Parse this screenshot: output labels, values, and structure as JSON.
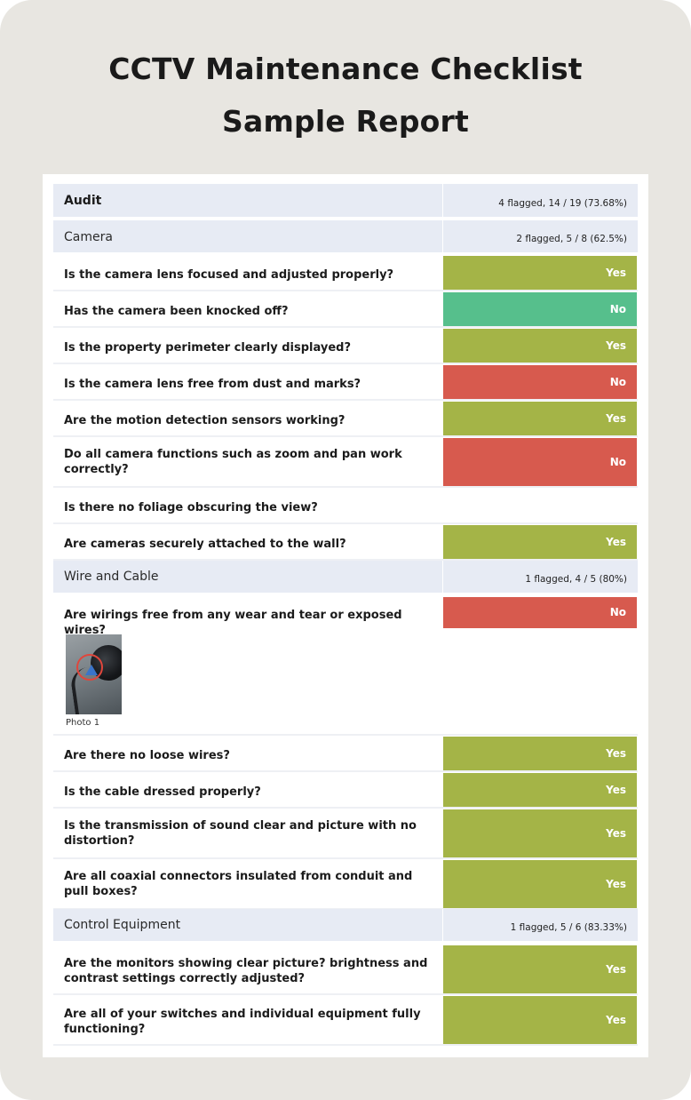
{
  "page": {
    "title_line1": "CCTV Maintenance Checklist",
    "title_line2": "Sample Report"
  },
  "audit": {
    "label": "Audit",
    "summary": "4 flagged, 14 / 19 (73.68%)"
  },
  "sections": {
    "camera": {
      "label": "Camera",
      "summary": "2 flagged, 5 / 8 (62.5%)"
    },
    "wire": {
      "label": "Wire and Cable",
      "summary": "1 flagged, 4 / 5 (80%)"
    },
    "control": {
      "label": "Control Equipment",
      "summary": "1 flagged, 5 / 6 (83.33%)"
    }
  },
  "questions": [
    {
      "text": "Is the camera lens focused and adjusted properly?",
      "answer": "Yes",
      "color": "#a4b447"
    },
    {
      "text": "Has the camera been knocked off?",
      "answer": "No",
      "color": "#56bf8c"
    },
    {
      "text": "Is the property perimeter clearly displayed?",
      "answer": "Yes",
      "color": "#a4b447"
    },
    {
      "text": "Is the camera lens free from dust and marks?",
      "answer": "No",
      "color": "#d75a4e"
    },
    {
      "text": "Are the motion detection sensors working?",
      "answer": "Yes",
      "color": "#a4b447"
    },
    {
      "text": "Do all camera functions such as zoom and pan work correctly?",
      "answer": "No",
      "color": "#d75a4e"
    },
    {
      "text": "Is there no foliage obscuring the view?",
      "answer": "",
      "color": ""
    },
    {
      "text": "Are cameras securely attached to the wall?",
      "answer": "Yes",
      "color": "#a4b447"
    },
    {
      "text": "Are wirings free from any wear and tear or exposed wires?",
      "answer": "No",
      "color": "#d75a4e"
    },
    {
      "text": "Are there no loose wires?",
      "answer": "Yes",
      "color": "#a4b447"
    },
    {
      "text": "Is the cable dressed properly?",
      "answer": "Yes",
      "color": "#a4b447"
    },
    {
      "text": "Is the transmission of sound clear and picture with no distortion?",
      "answer": "Yes",
      "color": "#a4b447"
    },
    {
      "text": "Are all coaxial connectors insulated from conduit and pull boxes?",
      "answer": "Yes",
      "color": "#a4b447"
    },
    {
      "text": "Are the monitors showing clear picture? brightness and contrast settings correctly adjusted?",
      "answer": "Yes",
      "color": "#a4b447"
    },
    {
      "text": "Are all of your switches and individual equipment fully functioning?",
      "answer": "Yes",
      "color": "#a4b447"
    }
  ],
  "photo": {
    "caption": "Photo 1",
    "icon": "cctv-photo"
  }
}
